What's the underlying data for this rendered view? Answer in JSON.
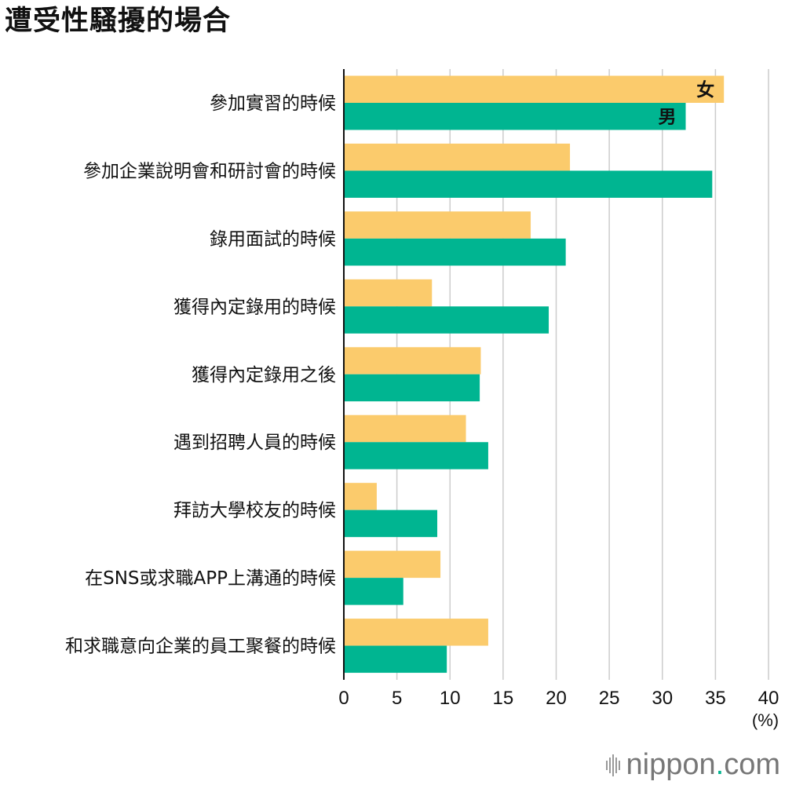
{
  "title": "遭受性騷擾的場合",
  "brand": {
    "name": "nippon",
    "dot": ".",
    "tld": "com"
  },
  "colors": {
    "female": "#fbcb6c",
    "male": "#00b591",
    "grid": "#cccccc",
    "axis": "#111111"
  },
  "chart_data": {
    "type": "bar",
    "orientation": "horizontal",
    "categories": [
      "參加實習的時候",
      "參加企業說明會和研討會的時候",
      "錄用面試的時候",
      "獲得內定錄用的時候",
      "獲得內定錄用之後",
      "遇到招聘人員的時候",
      "拜訪大學校友的時候",
      "在SNS或求職APP上溝通的時候",
      "和求職意向企業的員工聚餐的時候"
    ],
    "series": [
      {
        "name": "女",
        "values": [
          35.8,
          21.3,
          17.6,
          8.3,
          12.9,
          11.5,
          3.1,
          9.1,
          13.6
        ]
      },
      {
        "name": "男",
        "values": [
          32.2,
          34.7,
          20.9,
          19.3,
          12.8,
          13.6,
          8.8,
          5.6,
          9.7
        ]
      }
    ],
    "xlim": [
      0,
      40
    ],
    "xticks": [
      "0",
      "5",
      "10",
      "15",
      "20",
      "25",
      "30",
      "35",
      "40"
    ],
    "xunit": "(%)",
    "legend_placement": "inside end of first bars"
  }
}
